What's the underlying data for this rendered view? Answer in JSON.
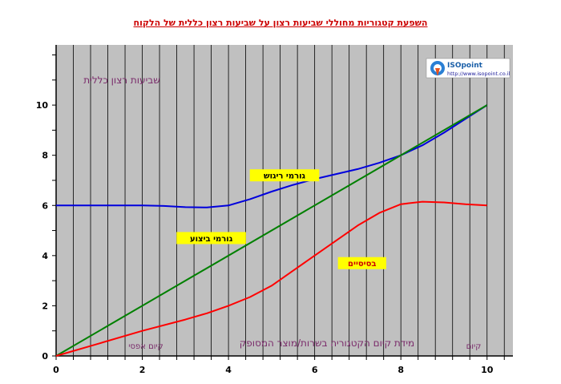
{
  "chart_data": {
    "type": "line",
    "title": "השפעת  קטגוריות מחוללי שביעות רצון על שביעות רצון כללית של הלקוח",
    "ylabel": "שביעות רצון כללית",
    "xlabel": "מידת קיום הקטגוריה בשרות/מוצר המסופק",
    "x_annotations": {
      "left": "קיום אפסי",
      "right": "קיום"
    },
    "xlim": [
      0,
      10.6
    ],
    "ylim": [
      0,
      12.4
    ],
    "xticks": [
      0,
      2,
      4,
      6,
      8,
      10
    ],
    "yticks": [
      0,
      2,
      4,
      6,
      8,
      10
    ],
    "grid": true,
    "plot_background": "#c0c0c0",
    "series": [
      {
        "name": "גורמי ריגוש",
        "color": "#0000dd",
        "x": [
          0,
          1,
          2,
          2.5,
          3,
          3.5,
          4,
          4.5,
          5,
          5.5,
          6,
          6.5,
          7,
          7.5,
          8,
          8.5,
          9,
          9.5,
          10
        ],
        "y": [
          6,
          6,
          6,
          5.98,
          5.93,
          5.92,
          6.0,
          6.25,
          6.55,
          6.82,
          7.05,
          7.25,
          7.45,
          7.7,
          8.0,
          8.4,
          8.9,
          9.45,
          10
        ]
      },
      {
        "name": "גורמי ביצוע",
        "color": "#008000",
        "x": [
          0,
          10
        ],
        "y": [
          0,
          10
        ]
      },
      {
        "name": "בסיסיים",
        "color": "#ff0000",
        "x": [
          0,
          1,
          2,
          3,
          3.5,
          4,
          4.5,
          5,
          5.5,
          6,
          6.5,
          7,
          7.5,
          8,
          8.5,
          9,
          9.5,
          10
        ],
        "y": [
          0,
          0.5,
          1.0,
          1.45,
          1.7,
          2.0,
          2.35,
          2.8,
          3.4,
          4.0,
          4.6,
          5.2,
          5.7,
          6.05,
          6.15,
          6.12,
          6.05,
          6.0
        ]
      }
    ],
    "series_labels": [
      {
        "text": "גורמי ריגוש",
        "x": 5.3,
        "y": 7.2,
        "text_color": "#000000",
        "box_color": "#ffff00"
      },
      {
        "text": "גורמי ביצוע",
        "x": 3.6,
        "y": 4.7,
        "text_color": "#000000",
        "box_color": "#ffff00"
      },
      {
        "text": "בסיסיים",
        "x": 7.1,
        "y": 3.7,
        "text_color": "#cc0000",
        "box_color": "#ffff00"
      }
    ]
  },
  "logo": {
    "name": "ISOpoint",
    "url": "http://www.isopoint.co.il"
  }
}
